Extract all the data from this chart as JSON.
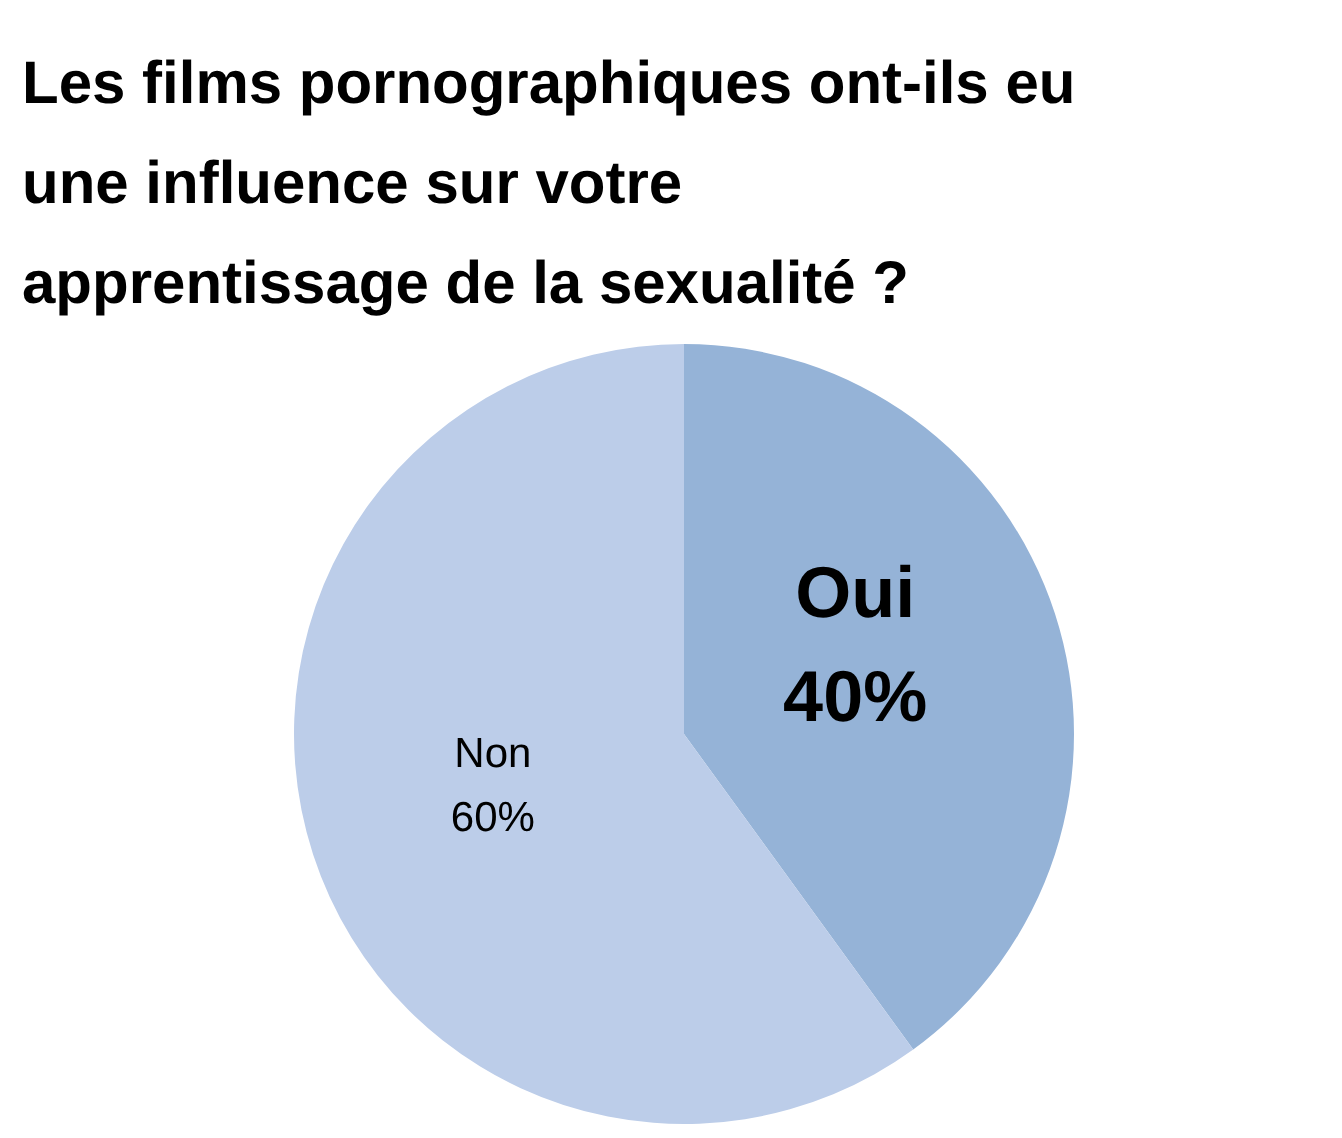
{
  "chart_data": {
    "type": "pie",
    "title": "Les films pornographiques ont-ils eu\nune influence sur votre\napprentissage de la sexualité ?",
    "categories": [
      "Oui",
      "Non"
    ],
    "values": [
      40,
      60
    ],
    "value_labels": [
      "40%",
      "60%"
    ],
    "colors": [
      "#95b3d7",
      "#bccde9"
    ],
    "legend": false
  }
}
